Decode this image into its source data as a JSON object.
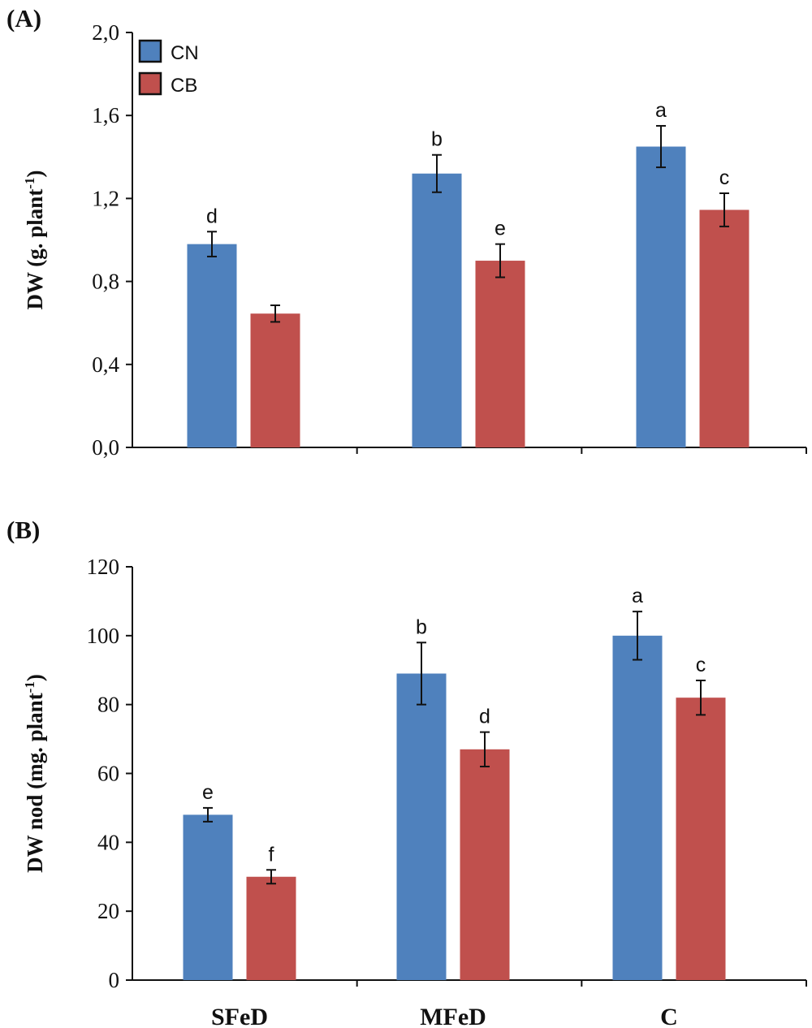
{
  "chart_data": [
    {
      "type": "bar",
      "panel_label": "(A)",
      "ylabel": "DW (g. plant",
      "ylabel_sup": "-1",
      "ylabel_close": ")",
      "ylim": [
        0,
        2.0
      ],
      "yticks": [
        "0,0",
        "0,4",
        "0,8",
        "1,2",
        "1,6",
        "2,0"
      ],
      "categories": [
        "SFeD",
        "MFeD",
        "C"
      ],
      "show_category_labels": false,
      "legend": {
        "position": "top-left",
        "entries": [
          "CN",
          "CB"
        ]
      },
      "series": [
        {
          "name": "CN",
          "color": "#4F81BD",
          "values": [
            0.98,
            1.32,
            1.45
          ],
          "errors": [
            0.06,
            0.09,
            0.1
          ],
          "letters": [
            "d",
            "b",
            "a"
          ]
        },
        {
          "name": "CB",
          "color": "#C0504D",
          "values": [
            0.645,
            0.9,
            1.145
          ],
          "errors": [
            0.04,
            0.08,
            0.08
          ],
          "letters": [
            "",
            "e",
            "c"
          ]
        }
      ]
    },
    {
      "type": "bar",
      "panel_label": "(B)",
      "ylabel": "DW nod (mg. plant",
      "ylabel_sup": "-1",
      "ylabel_close": ")",
      "ylim": [
        0,
        120
      ],
      "yticks": [
        "0",
        "20",
        "40",
        "60",
        "80",
        "100",
        "120"
      ],
      "categories": [
        "SFeD",
        "MFeD",
        "C"
      ],
      "show_category_labels": true,
      "series": [
        {
          "name": "CN",
          "color": "#4F81BD",
          "values": [
            48,
            89,
            100
          ],
          "errors": [
            2,
            9,
            7
          ],
          "letters": [
            "e",
            "b",
            "a"
          ]
        },
        {
          "name": "CB",
          "color": "#C0504D",
          "values": [
            30,
            67,
            82
          ],
          "errors": [
            2,
            5,
            5
          ],
          "letters": [
            "f",
            "d",
            "c"
          ]
        }
      ]
    }
  ]
}
